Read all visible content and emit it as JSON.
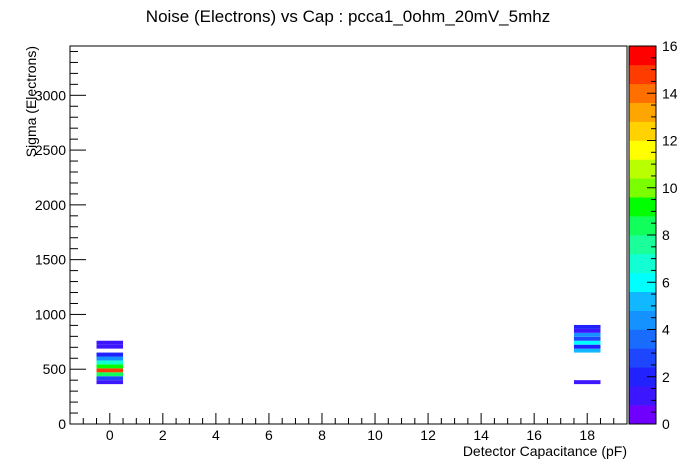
{
  "chart_data": {
    "type": "heatmap",
    "title": "Noise (Electrons) vs Cap : pcca1_0ohm_20mV_5mhz",
    "xlabel": "Detector Capacitance (pF)",
    "ylabel": "Sigma (Electrons)",
    "xlim": [
      -1.5,
      19.5
    ],
    "ylim": [
      0,
      3450
    ],
    "x_ticks": [
      0,
      2,
      4,
      6,
      8,
      10,
      12,
      14,
      16,
      18
    ],
    "y_ticks": [
      0,
      500,
      1000,
      1500,
      2000,
      2500,
      3000
    ],
    "z_range": [
      0,
      16
    ],
    "z_ticks": [
      0,
      2,
      4,
      6,
      8,
      10,
      12,
      14,
      16
    ],
    "bin_width_x": 1,
    "bin_height_y": 36,
    "bins": [
      {
        "x": 0,
        "y": 382,
        "z": 1
      },
      {
        "x": 0,
        "y": 418,
        "z": 3
      },
      {
        "x": 0,
        "y": 454,
        "z": 8
      },
      {
        "x": 0,
        "y": 490,
        "z": 15
      },
      {
        "x": 0,
        "y": 526,
        "z": 9
      },
      {
        "x": 0,
        "y": 562,
        "z": 7
      },
      {
        "x": 0,
        "y": 598,
        "z": 4
      },
      {
        "x": 0,
        "y": 634,
        "z": 2
      },
      {
        "x": 0,
        "y": 706,
        "z": 1
      },
      {
        "x": 0,
        "y": 742,
        "z": 1
      },
      {
        "x": 18,
        "y": 382,
        "z": 1
      },
      {
        "x": 18,
        "y": 670,
        "z": 5
      },
      {
        "x": 18,
        "y": 706,
        "z": 2
      },
      {
        "x": 18,
        "y": 742,
        "z": 6
      },
      {
        "x": 18,
        "y": 778,
        "z": 3
      },
      {
        "x": 18,
        "y": 814,
        "z": 4
      },
      {
        "x": 18,
        "y": 850,
        "z": 1
      },
      {
        "x": 18,
        "y": 886,
        "z": 2
      }
    ],
    "palette": [
      "#6f00ff",
      "#3c16ff",
      "#2222ff",
      "#1e46ff",
      "#1a6cff",
      "#1592ff",
      "#12b8ff",
      "#00ffff",
      "#11ffd2",
      "#1bff9a",
      "#11ff5a",
      "#00ff00",
      "#7bff00",
      "#b9ff00",
      "#ffff00",
      "#ffd200",
      "#ffa500",
      "#ff7000",
      "#ff3c00",
      "#ff0000"
    ]
  }
}
